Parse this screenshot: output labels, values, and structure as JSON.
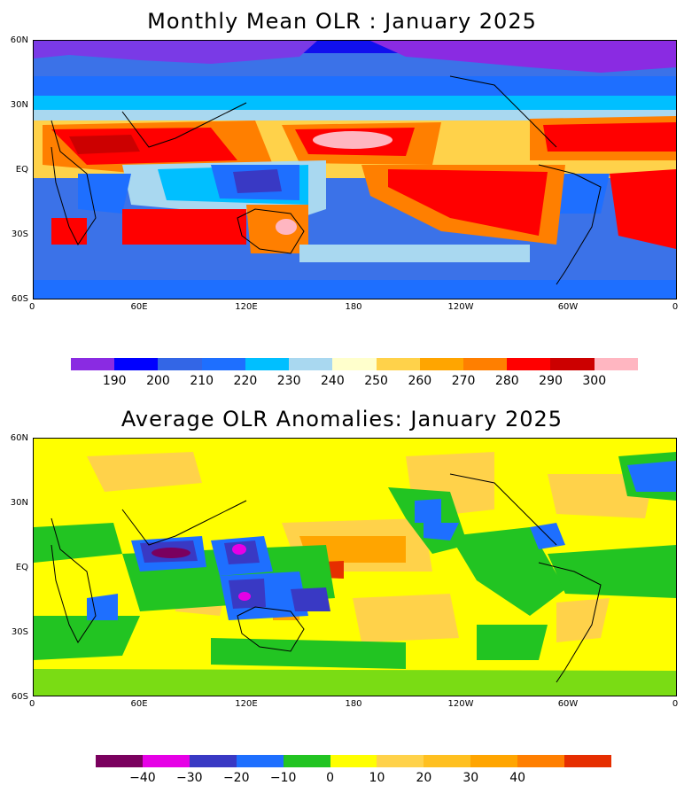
{
  "maps": [
    {
      "title": "Monthly Mean OLR : January 2025",
      "lat_labels": [
        "60N",
        "30N",
        "EQ",
        "30S",
        "60S"
      ],
      "lon_labels": [
        "0",
        "60E",
        "120E",
        "180",
        "120W",
        "60W",
        "0"
      ],
      "colorbar": {
        "colors": [
          "#8A2BE2",
          "#0000FF",
          "#3366E6",
          "#1E6FFF",
          "#00BFFF",
          "#A9D8F0",
          "#FFFFCC",
          "#FFD24A",
          "#FFA500",
          "#FF7F00",
          "#FF0000",
          "#CC0000",
          "#FFB6C1"
        ],
        "labels": [
          "190",
          "200",
          "210",
          "220",
          "230",
          "240",
          "250",
          "260",
          "270",
          "280",
          "290",
          "300"
        ]
      }
    },
    {
      "title": "Average OLR Anomalies: January 2025",
      "lat_labels": [
        "60N",
        "30N",
        "EQ",
        "30S",
        "60S"
      ],
      "lon_labels": [
        "0",
        "60E",
        "120E",
        "180",
        "120W",
        "60W",
        "0"
      ],
      "colorbar": {
        "colors": [
          "#7A005E",
          "#E600E6",
          "#3939C4",
          "#1E6FFF",
          "#22C422",
          "#FFFF00",
          "#FFD24A",
          "#FFC020",
          "#FFA500",
          "#FF7F00",
          "#E62E00"
        ],
        "labels": [
          "−40",
          "−30",
          "−20",
          "−10",
          "0",
          "10",
          "20",
          "30",
          "40"
        ]
      }
    }
  ]
}
